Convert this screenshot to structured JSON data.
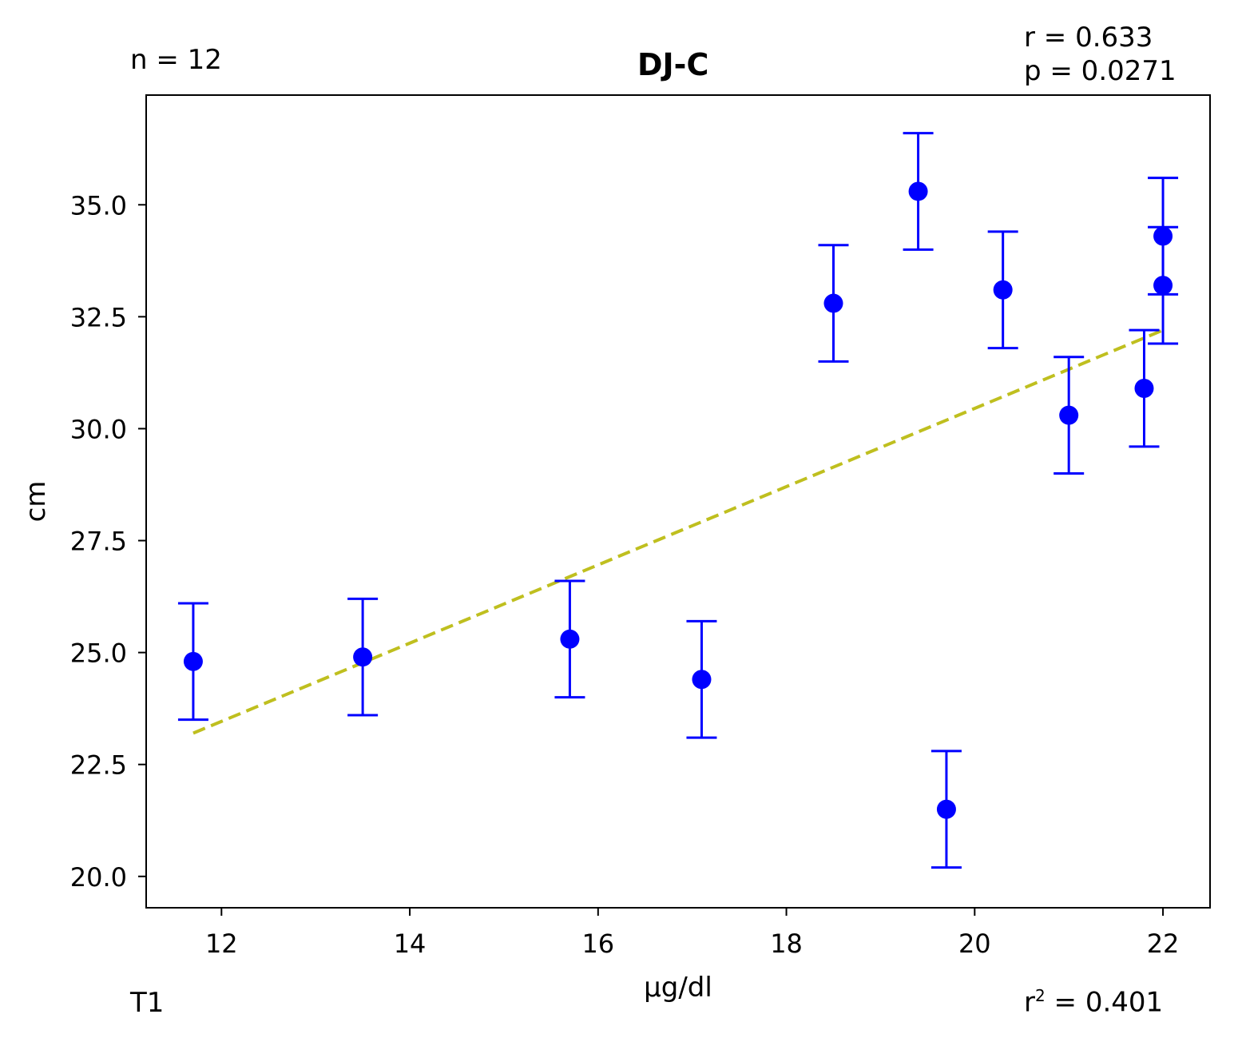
{
  "chart_data": {
    "type": "scatter",
    "title": "DJ-C",
    "xlabel": "µg/dl",
    "ylabel": "cm",
    "xlim": [
      11.2,
      22.5
    ],
    "ylim": [
      19.3,
      37.45
    ],
    "xticks": [
      12,
      14,
      16,
      18,
      20,
      22
    ],
    "yticks": [
      20.0,
      22.5,
      25.0,
      27.5,
      30.0,
      32.5,
      35.0
    ],
    "grid": false,
    "marker_color": "#0000ff",
    "fit_line_color": "#bfbf1f",
    "points": [
      {
        "x": 11.7,
        "y": 24.8,
        "err": 1.3
      },
      {
        "x": 13.5,
        "y": 24.9,
        "err": 1.3
      },
      {
        "x": 15.7,
        "y": 25.3,
        "err": 1.3
      },
      {
        "x": 17.1,
        "y": 24.4,
        "err": 1.3
      },
      {
        "x": 18.5,
        "y": 32.8,
        "err": 1.3
      },
      {
        "x": 19.4,
        "y": 35.3,
        "err": 1.3
      },
      {
        "x": 19.7,
        "y": 21.5,
        "err": 1.3
      },
      {
        "x": 20.3,
        "y": 33.1,
        "err": 1.3
      },
      {
        "x": 21.0,
        "y": 30.3,
        "err": 1.3
      },
      {
        "x": 21.8,
        "y": 30.9,
        "err": 1.3
      },
      {
        "x": 22.0,
        "y": 34.3,
        "err": 1.3
      },
      {
        "x": 22.0,
        "y": 33.2,
        "err": 1.3
      }
    ],
    "fit_line": {
      "x": [
        11.7,
        22.0
      ],
      "y": [
        23.2,
        32.2
      ]
    }
  },
  "annotations": {
    "n": "n = 12",
    "r": "r = 0.633",
    "p": "p = 0.0271",
    "r2_base": "r",
    "r2_sup": "2",
    "r2_value": " = 0.401",
    "t": "T1"
  }
}
